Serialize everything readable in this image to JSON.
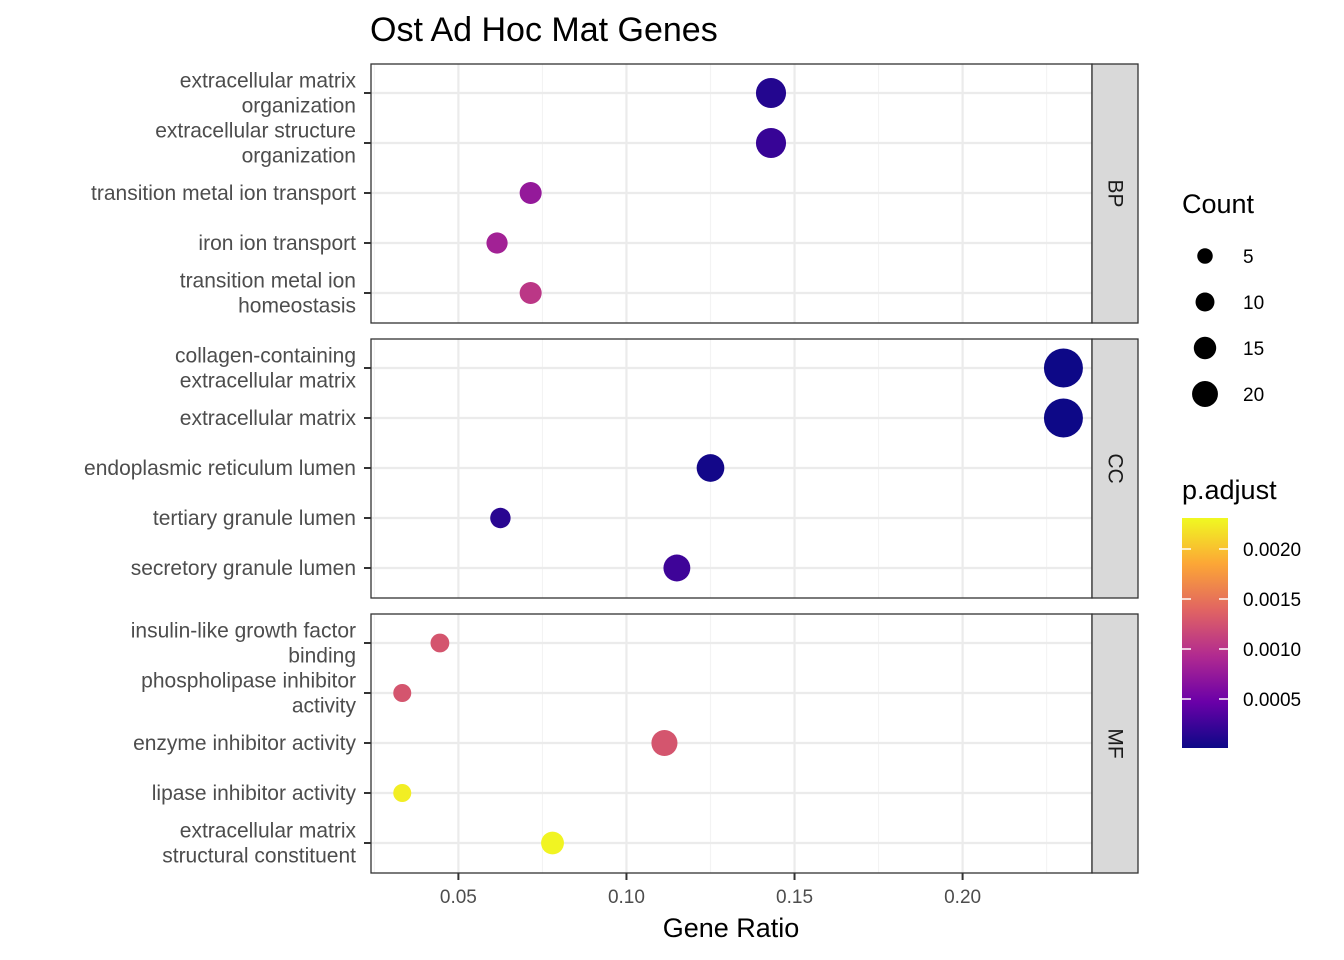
{
  "chart_data": {
    "type": "scatter",
    "title": "Ost Ad Hoc Mat Genes",
    "xlabel": "Gene Ratio",
    "ylabel": "",
    "xlim": [
      0.024,
      0.2385
    ],
    "x_ticks": [
      0.05,
      0.1,
      0.15,
      0.2
    ],
    "x_tick_labels": [
      "0.05",
      "0.10",
      "0.15",
      "0.20"
    ],
    "grid": true,
    "facets": [
      {
        "name": "BP",
        "terms": [
          {
            "label": [
              "extracellular matrix",
              "organization"
            ],
            "x": 0.143,
            "count": 20,
            "p_adjust": 0.00012
          },
          {
            "label": [
              "extracellular structure",
              "organization"
            ],
            "x": 0.143,
            "count": 20,
            "p_adjust": 0.00022
          },
          {
            "label": [
              "transition metal ion transport"
            ],
            "x": 0.0715,
            "count": 10,
            "p_adjust": 0.00074
          },
          {
            "label": [
              "iron ion transport"
            ],
            "x": 0.0615,
            "count": 9,
            "p_adjust": 0.00083
          },
          {
            "label": [
              "transition metal ion",
              "homeostasis"
            ],
            "x": 0.0715,
            "count": 10,
            "p_adjust": 0.00103
          }
        ]
      },
      {
        "name": "CC",
        "terms": [
          {
            "label": [
              "collagen-containing",
              "extracellular matrix"
            ],
            "x": 0.23,
            "count": 31,
            "p_adjust": 1e-05
          },
          {
            "label": [
              "extracellular matrix"
            ],
            "x": 0.23,
            "count": 31,
            "p_adjust": 1e-05
          },
          {
            "label": [
              "endoplasmic reticulum lumen"
            ],
            "x": 0.125,
            "count": 17,
            "p_adjust": 4e-05
          },
          {
            "label": [
              "tertiary granule lumen"
            ],
            "x": 0.0625,
            "count": 8,
            "p_adjust": 0.00015
          },
          {
            "label": [
              "secretory granule lumen"
            ],
            "x": 0.115,
            "count": 16,
            "p_adjust": 0.00025
          }
        ]
      },
      {
        "name": "MF",
        "terms": [
          {
            "label": [
              "insulin-like growth factor",
              "binding"
            ],
            "x": 0.0445,
            "count": 6,
            "p_adjust": 0.00127
          },
          {
            "label": [
              "phospholipase inhibitor",
              "activity"
            ],
            "x": 0.0333,
            "count": 5,
            "p_adjust": 0.00127
          },
          {
            "label": [
              "enzyme inhibitor activity"
            ],
            "x": 0.1113,
            "count": 15,
            "p_adjust": 0.00127
          },
          {
            "label": [
              "lipase inhibitor activity"
            ],
            "x": 0.0333,
            "count": 5,
            "p_adjust": 0.00225
          },
          {
            "label": [
              "extracellular matrix",
              "structural constituent"
            ],
            "x": 0.078,
            "count": 11,
            "p_adjust": 0.00228
          }
        ]
      }
    ],
    "size_legend": {
      "title": "Count",
      "values": [
        5,
        10,
        15,
        20
      ],
      "labels": [
        "5",
        "10",
        "15",
        "20"
      ],
      "count_range": [
        5,
        31
      ]
    },
    "color_legend": {
      "title": "p.adjust",
      "range": [
        1e-05,
        0.00231
      ],
      "ticks": [
        0.0005,
        0.001,
        0.0015,
        0.002
      ],
      "tick_labels": [
        "0.0005",
        "0.0010",
        "0.0015",
        "0.0020"
      ],
      "colors": [
        "#0d0887",
        "#6a00a8",
        "#b12a90",
        "#e16462",
        "#fca636",
        "#f0f921"
      ]
    }
  }
}
